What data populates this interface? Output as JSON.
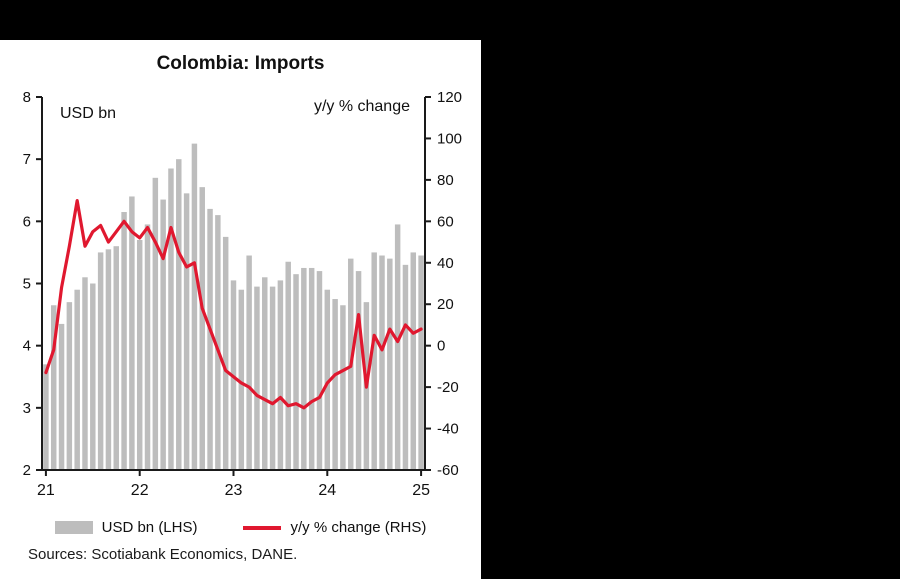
{
  "header": {
    "title": "Colombia: Imports"
  },
  "chart_data": {
    "type": "bar",
    "title": "Colombia: Imports",
    "frequency_note": "monthly bars from 21 to 25",
    "left_axis": {
      "label": "USD bn",
      "range": [
        2,
        8
      ],
      "ticks": [
        8,
        7,
        6,
        5,
        4,
        3,
        2
      ]
    },
    "right_axis": {
      "label": "y/y % change",
      "range": [
        -60,
        120
      ],
      "ticks": [
        120,
        100,
        80,
        60,
        40,
        20,
        0,
        -20,
        -40,
        -60
      ]
    },
    "x_axis": {
      "ticks": [
        {
          "label": "21",
          "index": 0
        },
        {
          "label": "22",
          "index": 12
        },
        {
          "label": "23",
          "index": 24
        },
        {
          "label": "24",
          "index": 36
        },
        {
          "label": "25",
          "index": 48
        }
      ]
    },
    "grid": false,
    "legend_position": "bottom",
    "bars": {
      "name": "USD bn (LHS)",
      "color": "#bdbdbd",
      "values": [
        3.7,
        4.65,
        4.35,
        4.7,
        4.9,
        5.1,
        5.0,
        5.5,
        5.55,
        5.6,
        6.15,
        6.4,
        5.7,
        5.95,
        6.7,
        6.35,
        6.85,
        7.0,
        6.45,
        7.25,
        6.55,
        6.2,
        6.1,
        5.75,
        5.05,
        4.9,
        5.45,
        4.95,
        5.1,
        4.95,
        5.05,
        5.35,
        5.15,
        5.25,
        5.25,
        5.2,
        4.9,
        4.75,
        4.65,
        5.4,
        5.2,
        4.7,
        5.5,
        5.45,
        5.4,
        5.95,
        5.3,
        5.5,
        5.45
      ]
    },
    "line": {
      "name": "y/y % change (RHS)",
      "color": "#e0182f",
      "values": [
        -13,
        -2,
        28,
        48,
        70,
        48,
        55,
        58,
        50,
        55,
        60,
        55,
        52,
        57,
        50,
        42,
        57,
        45,
        38,
        40,
        18,
        8,
        -2,
        -12,
        -15,
        -18,
        -20,
        -24,
        -26,
        -28,
        -25,
        -29,
        -28,
        -30,
        -27,
        -25,
        -18,
        -14,
        -12,
        -10,
        15,
        -20,
        5,
        -2,
        8,
        2,
        10,
        6,
        8
      ]
    }
  },
  "legend": {
    "bar_label": "USD bn (LHS)",
    "line_label": "y/y % change (RHS)"
  },
  "footer": {
    "sources": "Sources: Scotiabank Economics, DANE."
  }
}
